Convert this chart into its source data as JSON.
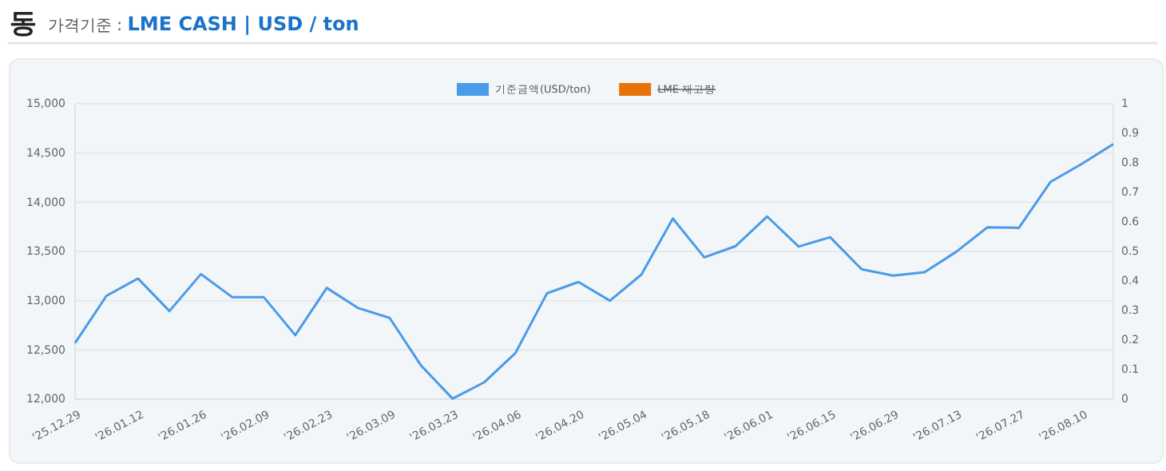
{
  "chart_data": {
    "type": "line",
    "title": "동",
    "subtitle": "가격기준 : LME CASH | USD / ton",
    "categories": [
      "'25.12.29",
      null,
      "'26.01.12",
      null,
      "'26.01.26",
      null,
      "'26.02.09",
      null,
      "'26.02.23",
      null,
      "'26.03.09",
      null,
      "'26.03.23",
      null,
      "'26.04.06",
      null,
      "'26.04.20",
      null,
      "'26.05.04",
      null,
      "'26.05.18",
      null,
      "'26.06.01",
      null,
      "'26.06.15",
      null,
      "'26.06.29",
      null,
      "'26.07.13",
      null,
      "'26.07.27",
      null,
      "'26.08.10",
      null
    ],
    "series": [
      {
        "name": "기준금액(USD/ton)",
        "color": "#4a9be8",
        "values": [
          12570,
          13050,
          13225,
          12895,
          13270,
          13035,
          13035,
          12650,
          13130,
          12925,
          12825,
          12340,
          12005,
          12170,
          12470,
          13075,
          13190,
          13000,
          13265,
          13835,
          13440,
          13555,
          13855,
          13550,
          13645,
          13320,
          13255,
          13290,
          13495,
          13745,
          13740,
          14205,
          14390,
          14590
        ]
      },
      {
        "name": "LME 재고량",
        "color": "#e8710a",
        "axis": "y2",
        "values": [
          null,
          null,
          null,
          null,
          null,
          null,
          null,
          null,
          null,
          null,
          null,
          null,
          null,
          null,
          null,
          null,
          null,
          null,
          null,
          null,
          null,
          null,
          null,
          null,
          null,
          null,
          null,
          null,
          null,
          null,
          null,
          null,
          null,
          null
        ]
      }
    ],
    "ylim": [
      12000,
      15000
    ],
    "yticks": [
      {
        "value": 12000,
        "label": "12,000"
      },
      {
        "value": 12500,
        "label": "12,500"
      },
      {
        "value": 13000,
        "label": "13,000"
      },
      {
        "value": 13500,
        "label": "13,500"
      },
      {
        "value": 14000,
        "label": "14,000"
      },
      {
        "value": 14500,
        "label": "14,500"
      },
      {
        "value": 15000,
        "label": "15,000"
      }
    ],
    "y2lim": [
      0,
      1
    ],
    "y2ticks": [
      0,
      0.1,
      0.2,
      0.3,
      0.4,
      0.5,
      0.6,
      0.7,
      0.8,
      0.9,
      1.0
    ],
    "grid": "y",
    "legend": "top",
    "marker": "none",
    "line_style": "solid"
  }
}
